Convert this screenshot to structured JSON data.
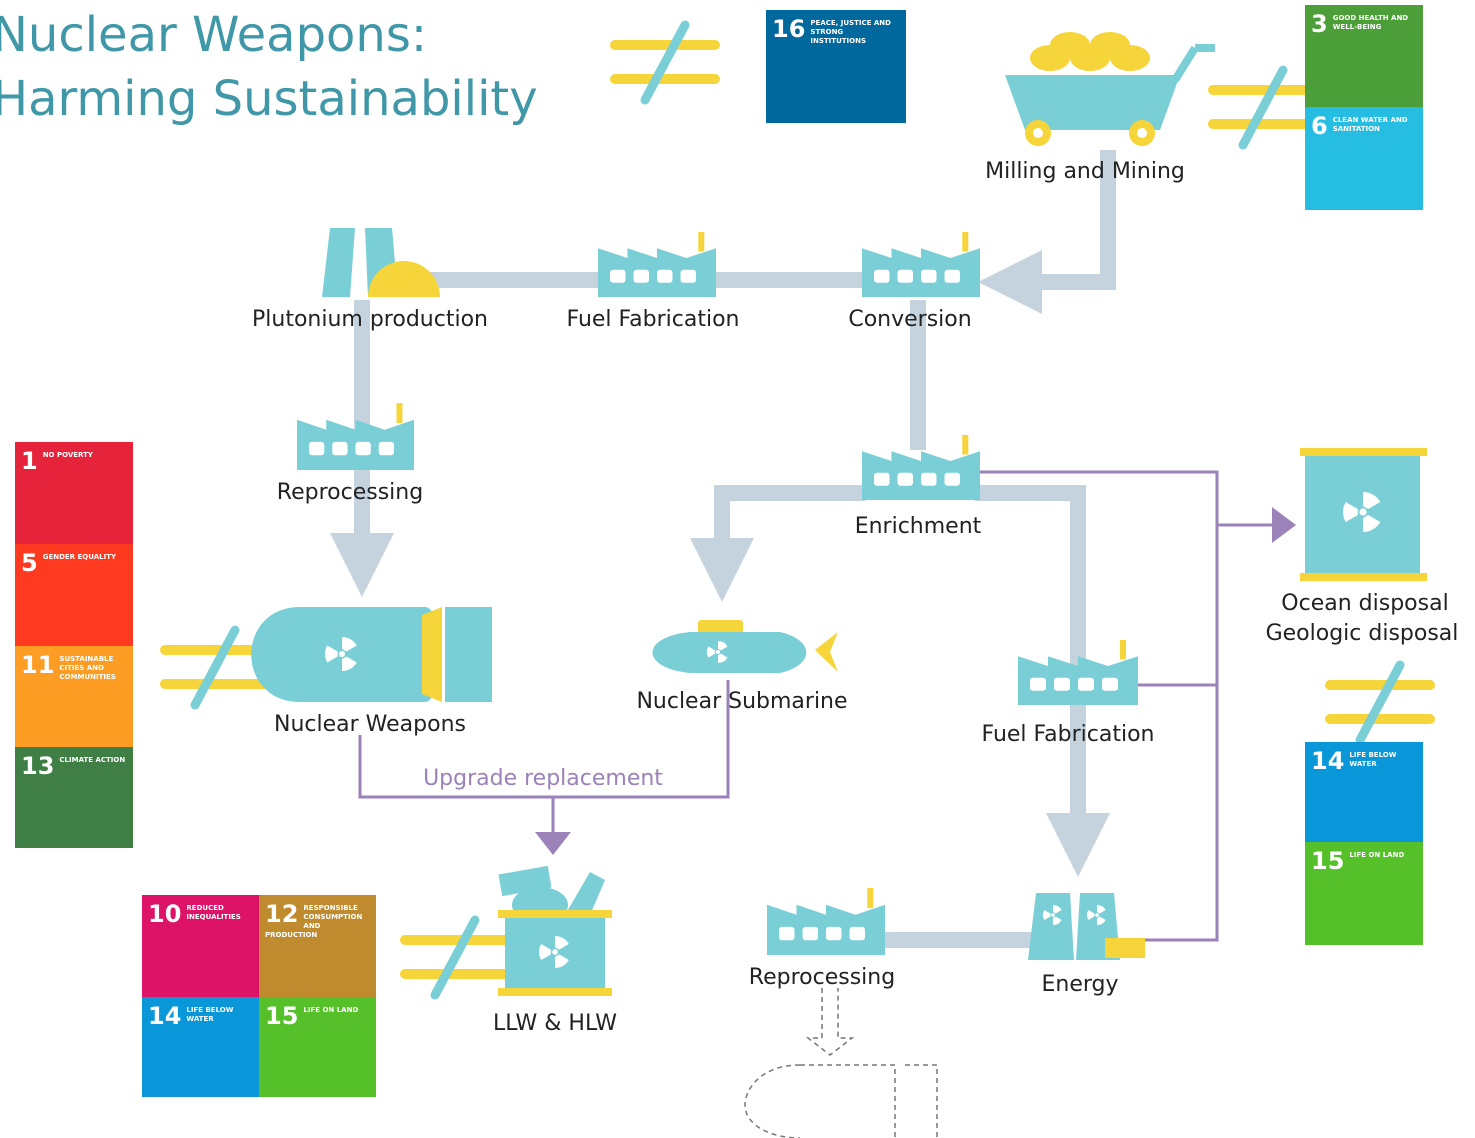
{
  "title": [
    "Nuclear Weapons:",
    "Harming Sustainability"
  ],
  "nodes": {
    "milling": "Milling and Mining",
    "conversion": "Conversion",
    "fuel_fabrication_top": "Fuel Fabrication",
    "plutonium": "Plutonium production",
    "reprocessing_left": "Reprocessing",
    "weapons": "Nuclear Weapons",
    "enrichment": "Enrichment",
    "submarine": "Nuclear Submarine",
    "fuel_fabrication_right": "Fuel Fabrication",
    "energy": "Energy",
    "reprocessing_bottom": "Reprocessing",
    "waste": "LLW & HLW",
    "disposal": [
      "Ocean disposal",
      "Geologic disposal"
    ]
  },
  "edge_labels": {
    "upgrade": "Upgrade replacement"
  },
  "sdg_groups": {
    "top": [
      {
        "number": 16,
        "label": "PEACE, JUSTICE AND STRONG INSTITUTIONS"
      }
    ],
    "mining": [
      {
        "number": 3,
        "label": "GOOD HEALTH AND WELL-BEING"
      },
      {
        "number": 6,
        "label": "CLEAN WATER AND SANITATION"
      }
    ],
    "weapons": [
      {
        "number": 1,
        "label": "NO POVERTY"
      },
      {
        "number": 5,
        "label": "GENDER EQUALITY"
      },
      {
        "number": 11,
        "label": "SUSTAINABLE CITIES AND COMMUNITIES"
      },
      {
        "number": 13,
        "label": "CLIMATE ACTION"
      }
    ],
    "disposal": [
      {
        "number": 14,
        "label": "LIFE BELOW WATER"
      },
      {
        "number": 15,
        "label": "LIFE ON LAND"
      }
    ],
    "waste": [
      {
        "number": 10,
        "label": "REDUCED INEQUALITIES"
      },
      {
        "number": 12,
        "label": "RESPONSIBLE CONSUMPTION AND PRODUCTION"
      },
      {
        "number": 14,
        "label": "LIFE BELOW WATER"
      },
      {
        "number": 15,
        "label": "LIFE ON LAND"
      }
    ]
  }
}
